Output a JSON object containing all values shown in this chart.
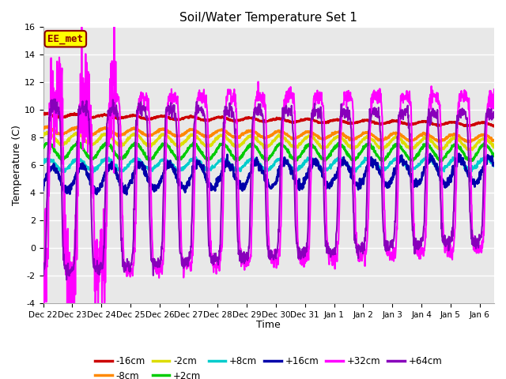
{
  "title": "Soil/Water Temperature Set 1",
  "xlabel": "Time",
  "ylabel": "Temperature (C)",
  "ylim": [
    -4,
    16
  ],
  "background_color": "#e8e8e8",
  "annotation_text": "EE_met",
  "annotation_bg": "#ffff00",
  "annotation_border": "#8b0000",
  "series": [
    {
      "label": "-16cm",
      "color": "#cc0000"
    },
    {
      "label": "-8cm",
      "color": "#ff8800"
    },
    {
      "label": "-2cm",
      "color": "#dddd00"
    },
    {
      "label": "+2cm",
      "color": "#00cc00"
    },
    {
      "label": "+8cm",
      "color": "#00cccc"
    },
    {
      "label": "+16cm",
      "color": "#0000aa"
    },
    {
      "label": "+32cm",
      "color": "#ff00ff"
    },
    {
      "label": "+64cm",
      "color": "#8800bb"
    }
  ],
  "tick_labels": [
    "Dec 22",
    "Dec 23",
    "Dec 24",
    "Dec 25",
    "Dec 26",
    "Dec 27",
    "Dec 28",
    "Dec 29",
    "Dec 30",
    "Dec 31",
    "Jan 1",
    "Jan 2",
    "Jan 3",
    "Jan 4",
    "Jan 5",
    "Jan 6"
  ]
}
